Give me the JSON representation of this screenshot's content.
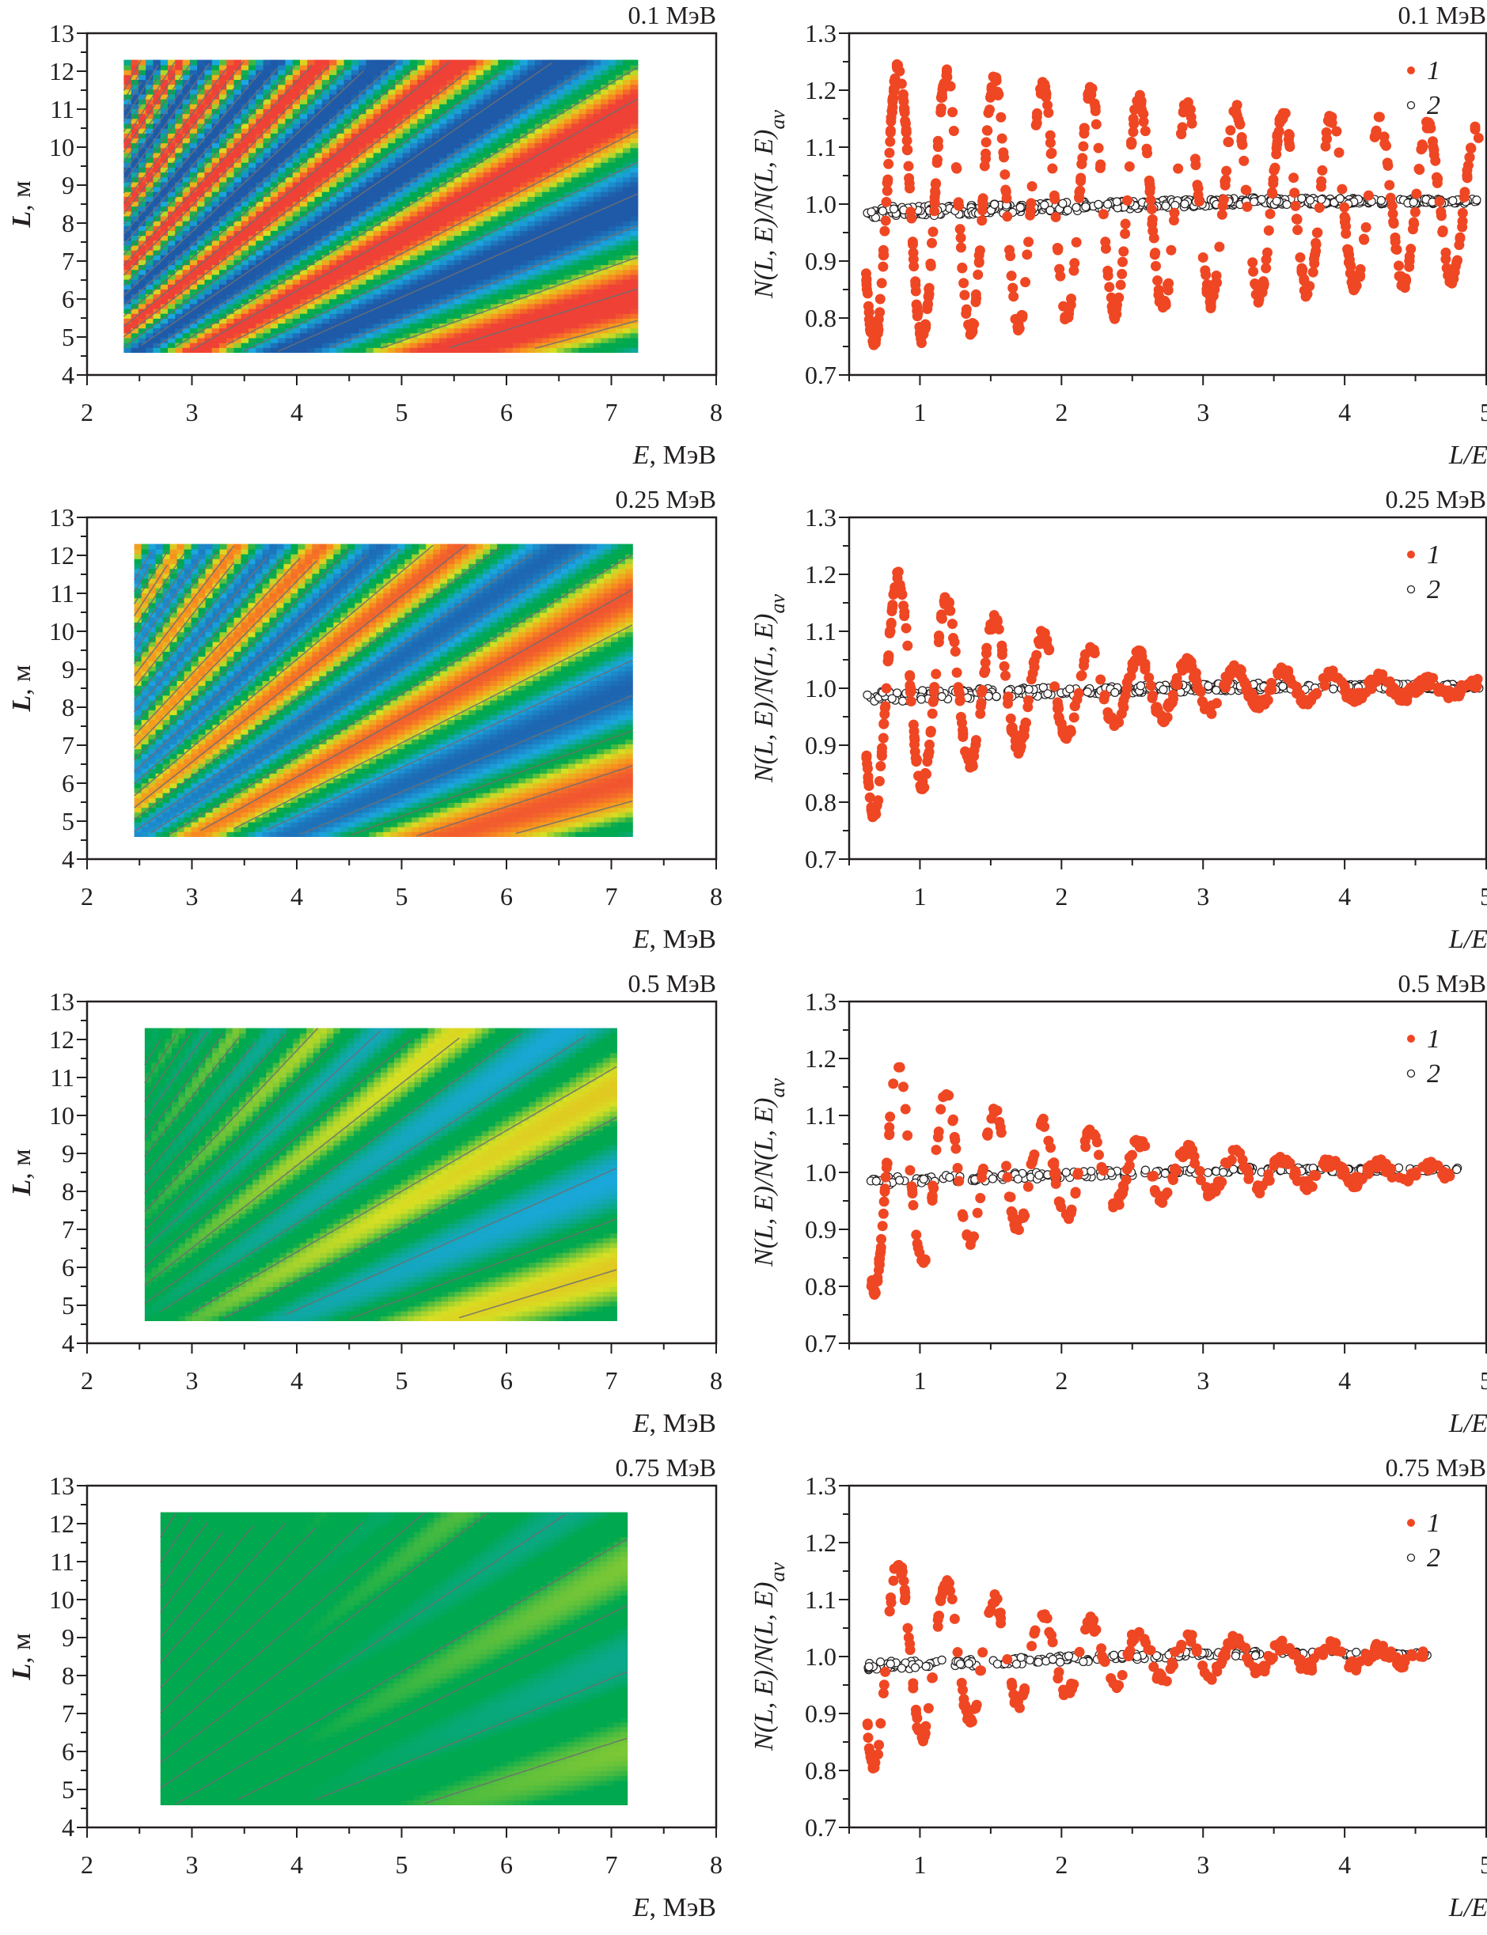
{
  "figure": {
    "rows": [
      {
        "label": "0.1 МэВ"
      },
      {
        "label": "0.25 МэВ"
      },
      {
        "label": "0.5 МэВ"
      },
      {
        "label": "0.75 МэВ"
      }
    ]
  },
  "chart_data": [
    {
      "id": "map-0.1",
      "type": "heatmap",
      "title": "0.1 МэВ",
      "xlabel": "E, МэВ",
      "xlabel_var": "E",
      "xlabel_unit": ", МэВ",
      "ylabel": "L, м",
      "ylabel_var": "L",
      "ylabel_unit": ", м",
      "xlim": [
        2,
        8
      ],
      "ylim": [
        4,
        13
      ],
      "xticks": [
        2,
        3,
        4,
        5,
        6,
        7,
        8
      ],
      "yticks": [
        4,
        5,
        6,
        7,
        8,
        9,
        10,
        11,
        12,
        13
      ],
      "data_extent": {
        "E": [
          2.35,
          7.25
        ],
        "L": [
          4.6,
          12.3
        ]
      },
      "resolution_MeV": 0.1,
      "stripe_period": 1.0,
      "contrast": 1.0,
      "grid": false
    },
    {
      "id": "scatter-0.1",
      "type": "scatter",
      "title": "0.1 МэВ",
      "xlabel": "L/E",
      "ylabel": "N(L, E)/N(L, E)_av",
      "xlim": [
        0.5,
        5
      ],
      "ylim": [
        0.7,
        1.3
      ],
      "xticks": [
        1,
        2,
        3,
        4,
        5
      ],
      "yticks": [
        0.7,
        0.8,
        0.9,
        1.0,
        1.1,
        1.2,
        1.3
      ],
      "legend": [
        {
          "label": "1",
          "marker": "filled",
          "color": "#ef4723"
        },
        {
          "label": "2",
          "marker": "open",
          "color": "#231f20"
        }
      ],
      "legend_position": "top-right",
      "series": [
        {
          "name": "1",
          "x_range": [
            0.62,
            4.95
          ],
          "amplitude_start": 0.25,
          "amplitude_end": 0.13,
          "period": 0.34,
          "points": 700
        },
        {
          "name": "2",
          "x_range": [
            0.62,
            4.95
          ],
          "level_start": 0.985,
          "level_end": 1.005,
          "spread": 0.02,
          "points": 500
        }
      ]
    },
    {
      "id": "map-0.25",
      "type": "heatmap",
      "title": "0.25 МэВ",
      "xlabel": "E, МэВ",
      "xlabel_var": "E",
      "xlabel_unit": ", МэВ",
      "ylabel": "L, м",
      "ylabel_var": "L",
      "ylabel_unit": ", м",
      "xlim": [
        2,
        8
      ],
      "ylim": [
        4,
        13
      ],
      "xticks": [
        2,
        3,
        4,
        5,
        6,
        7,
        8
      ],
      "yticks": [
        4,
        5,
        6,
        7,
        8,
        9,
        10,
        11,
        12,
        13
      ],
      "data_extent": {
        "E": [
          2.45,
          7.2
        ],
        "L": [
          4.6,
          12.3
        ]
      },
      "resolution_MeV": 0.25,
      "stripe_period": 1.0,
      "contrast": 0.85,
      "grid": false
    },
    {
      "id": "scatter-0.25",
      "type": "scatter",
      "title": "0.25 МэВ",
      "xlabel": "L/E",
      "ylabel": "N(L, E)/N(L, E)_av",
      "xlim": [
        0.5,
        5
      ],
      "ylim": [
        0.7,
        1.3
      ],
      "xticks": [
        1,
        2,
        3,
        4,
        5
      ],
      "yticks": [
        0.7,
        0.8,
        0.9,
        1.0,
        1.1,
        1.2,
        1.3
      ],
      "legend": [
        {
          "label": "1",
          "marker": "filled",
          "color": "#ef4723"
        },
        {
          "label": "2",
          "marker": "open",
          "color": "#231f20"
        }
      ],
      "legend_position": "top-right",
      "series": [
        {
          "name": "1",
          "x_range": [
            0.62,
            4.95
          ],
          "amplitude_start": 0.23,
          "amplitude_end": 0.01,
          "period": 0.34,
          "points": 520
        },
        {
          "name": "2",
          "x_range": [
            0.62,
            4.95
          ],
          "level_start": 0.985,
          "level_end": 1.003,
          "spread": 0.02,
          "points": 360
        }
      ]
    },
    {
      "id": "map-0.5",
      "type": "heatmap",
      "title": "0.5 МэВ",
      "xlabel": "E, МэВ",
      "xlabel_var": "E",
      "xlabel_unit": ", МэВ",
      "ylabel": "L, м",
      "ylabel_var": "L",
      "ylabel_unit": ", м",
      "xlim": [
        2,
        8
      ],
      "ylim": [
        4,
        13
      ],
      "xticks": [
        2,
        3,
        4,
        5,
        6,
        7,
        8
      ],
      "yticks": [
        4,
        5,
        6,
        7,
        8,
        9,
        10,
        11,
        12,
        13
      ],
      "data_extent": {
        "E": [
          2.55,
          7.05
        ],
        "L": [
          4.6,
          12.3
        ]
      },
      "resolution_MeV": 0.5,
      "stripe_period": 1.0,
      "contrast": 0.55,
      "grid": false
    },
    {
      "id": "scatter-0.5",
      "type": "scatter",
      "title": "0.5 МэВ",
      "xlabel": "L/E",
      "ylabel": "N(L, E)/N(L, E)_av",
      "xlim": [
        0.5,
        5
      ],
      "ylim": [
        0.7,
        1.3
      ],
      "xticks": [
        1,
        2,
        3,
        4,
        5
      ],
      "yticks": [
        0.7,
        0.8,
        0.9,
        1.0,
        1.1,
        1.2,
        1.3
      ],
      "legend": [
        {
          "label": "1",
          "marker": "filled",
          "color": "#ef4723"
        },
        {
          "label": "2",
          "marker": "open",
          "color": "#231f20"
        }
      ],
      "legend_position": "top-right",
      "series": [
        {
          "name": "1",
          "x_range": [
            0.65,
            4.8
          ],
          "amplitude_start": 0.21,
          "amplitude_end": 0.01,
          "period": 0.34,
          "points": 340
        },
        {
          "name": "2",
          "x_range": [
            0.65,
            4.8
          ],
          "level_start": 0.985,
          "level_end": 1.005,
          "spread": 0.015,
          "points": 220
        }
      ]
    },
    {
      "id": "map-0.75",
      "type": "heatmap",
      "title": "0.75 МэВ",
      "xlabel": "E, МэВ",
      "xlabel_var": "E",
      "xlabel_unit": ", МэВ",
      "ylabel": "L, м",
      "ylabel_var": "L",
      "ylabel_unit": ", м",
      "xlim": [
        2,
        8
      ],
      "ylim": [
        4,
        13
      ],
      "xticks": [
        2,
        3,
        4,
        5,
        6,
        7,
        8
      ],
      "yticks": [
        4,
        5,
        6,
        7,
        8,
        9,
        10,
        11,
        12,
        13
      ],
      "data_extent": {
        "E": [
          2.7,
          7.15
        ],
        "L": [
          4.6,
          12.3
        ]
      },
      "resolution_MeV": 0.75,
      "stripe_period": 1.0,
      "contrast": 0.4,
      "grid": false
    },
    {
      "id": "scatter-0.75",
      "type": "scatter",
      "title": "0.75 МэВ",
      "xlabel": "L/E",
      "ylabel": "N(L, E)/N(L, E)_av",
      "xlim": [
        0.5,
        5
      ],
      "ylim": [
        0.7,
        1.3
      ],
      "xticks": [
        1,
        2,
        3,
        4,
        5
      ],
      "yticks": [
        0.7,
        0.8,
        0.9,
        1.0,
        1.1,
        1.2,
        1.3
      ],
      "legend": [
        {
          "label": "1",
          "marker": "filled",
          "color": "#ef4723"
        },
        {
          "label": "2",
          "marker": "open",
          "color": "#231f20"
        }
      ],
      "legend_position": "top-right",
      "series": [
        {
          "name": "1",
          "x_range": [
            0.62,
            4.6
          ],
          "amplitude_start": 0.2,
          "amplitude_end": 0.01,
          "period": 0.34,
          "points": 300
        },
        {
          "name": "2",
          "x_range": [
            0.62,
            4.6
          ],
          "level_start": 0.983,
          "level_end": 1.005,
          "spread": 0.015,
          "points": 200
        }
      ]
    }
  ],
  "colors": {
    "series1": "#ef4723",
    "series2_stroke": "#231f20",
    "contour_line": "#6d6e71",
    "map_low": "#1e5aa8",
    "map_midlow": "#1ba7e0",
    "map_mid": "#00a84f",
    "map_midhigh": "#d7df23",
    "map_high": "#f7941d",
    "map_max": "#ef4136",
    "axis": "#231f20"
  }
}
